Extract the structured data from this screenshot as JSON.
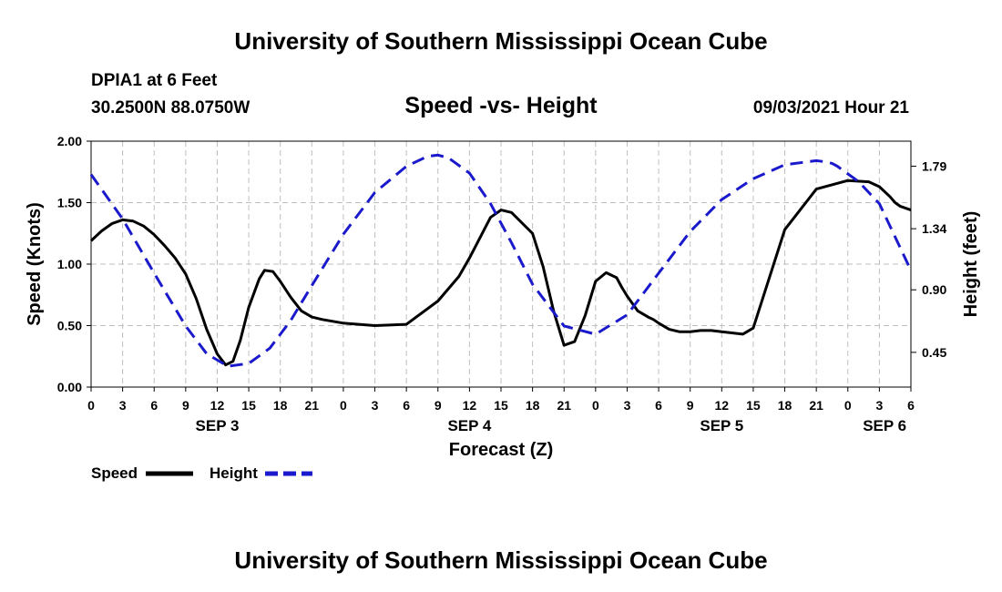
{
  "header": {
    "title": "University of Southern Mississippi Ocean Cube",
    "station": "DPIA1 at 6 Feet",
    "location": "30.2500N  88.0750W",
    "chart_title": "Speed -vs- Height",
    "datetime": "09/03/2021 Hour 21"
  },
  "footer": {
    "title": "University of Southern Mississippi Ocean Cube"
  },
  "legend": {
    "speed_label": "Speed",
    "height_label": "Height"
  },
  "colors": {
    "speed": "#000000",
    "height": "#1a1acc",
    "grid": "#bfbfbf"
  },
  "chart_data": {
    "type": "line",
    "title": "Speed -vs- Height",
    "xlabel": "Forecast (Z)",
    "ylabel_left": "Speed (Knots)",
    "ylabel_right": "Height (feet)",
    "x_range": [
      0,
      78
    ],
    "ylim_left": [
      0,
      2.0
    ],
    "ylim_right": [
      0.2,
      1.97
    ],
    "grid": true,
    "legend_position": "bottom-left",
    "x_ticks": [
      0,
      3,
      6,
      9,
      12,
      15,
      18,
      21,
      24,
      27,
      30,
      33,
      36,
      39,
      42,
      45,
      48,
      51,
      54,
      57,
      60,
      63,
      66,
      69,
      72,
      75,
      78
    ],
    "x_tick_labels": [
      "0",
      "3",
      "6",
      "9",
      "12",
      "15",
      "18",
      "21",
      "0",
      "3",
      "6",
      "9",
      "12",
      "15",
      "18",
      "21",
      "0",
      "3",
      "6",
      "9",
      "12",
      "15",
      "18",
      "21",
      "0",
      "3",
      "6"
    ],
    "day_labels": [
      {
        "label": "SEP 3",
        "x": 12
      },
      {
        "label": "SEP 4",
        "x": 36
      },
      {
        "label": "SEP 5",
        "x": 60
      },
      {
        "label": "SEP 6",
        "x": 75.5
      }
    ],
    "y_left_ticks": [
      "0.00",
      "0.50",
      "1.00",
      "1.50",
      "2.00"
    ],
    "y_right_ticks": [
      "0.45",
      "0.90",
      "1.34",
      "1.79"
    ],
    "series": [
      {
        "name": "Speed",
        "axis": "left",
        "style": "solid",
        "x": [
          0,
          1,
          2,
          3,
          4,
          5,
          6,
          7,
          8,
          9,
          10,
          11,
          12,
          12.8,
          13.5,
          14.2,
          15,
          16,
          16.5,
          17.3,
          18,
          19,
          20,
          21,
          22,
          24,
          27,
          30,
          33,
          35,
          36,
          38,
          39,
          40,
          42,
          43,
          44,
          45,
          46,
          47,
          48,
          49,
          50,
          50.5,
          51,
          52,
          53,
          53.5,
          54,
          55,
          56,
          57,
          58,
          59,
          60,
          62,
          63,
          66,
          69,
          72,
          74,
          75,
          76,
          76.5,
          77,
          78
        ],
        "y": [
          1.19,
          1.27,
          1.33,
          1.36,
          1.35,
          1.31,
          1.24,
          1.15,
          1.05,
          0.92,
          0.72,
          0.47,
          0.27,
          0.18,
          0.21,
          0.38,
          0.65,
          0.88,
          0.95,
          0.94,
          0.86,
          0.73,
          0.62,
          0.57,
          0.55,
          0.52,
          0.5,
          0.51,
          0.7,
          0.9,
          1.05,
          1.38,
          1.44,
          1.42,
          1.25,
          0.98,
          0.62,
          0.34,
          0.37,
          0.58,
          0.86,
          0.93,
          0.89,
          0.81,
          0.74,
          0.62,
          0.57,
          0.55,
          0.52,
          0.47,
          0.45,
          0.45,
          0.46,
          0.46,
          0.45,
          0.43,
          0.48,
          1.28,
          1.61,
          1.68,
          1.67,
          1.63,
          1.55,
          1.5,
          1.47,
          1.44
        ]
      },
      {
        "name": "Height",
        "axis": "right",
        "style": "dashed",
        "x": [
          0,
          3,
          6,
          9,
          11,
          13,
          15,
          17,
          19,
          21,
          24,
          27,
          30,
          32,
          33,
          34,
          36,
          38,
          40,
          42,
          45,
          48,
          51,
          54,
          57,
          60,
          63,
          66,
          69,
          70,
          70.5,
          71,
          73,
          75,
          78
        ],
        "y": [
          1.73,
          1.41,
          1.02,
          0.64,
          0.44,
          0.35,
          0.37,
          0.48,
          0.68,
          0.93,
          1.3,
          1.6,
          1.79,
          1.86,
          1.87,
          1.85,
          1.74,
          1.52,
          1.24,
          0.94,
          0.64,
          0.58,
          0.72,
          1.02,
          1.32,
          1.55,
          1.7,
          1.8,
          1.83,
          1.82,
          1.81,
          1.79,
          1.68,
          1.52,
          1.04
        ]
      }
    ]
  }
}
